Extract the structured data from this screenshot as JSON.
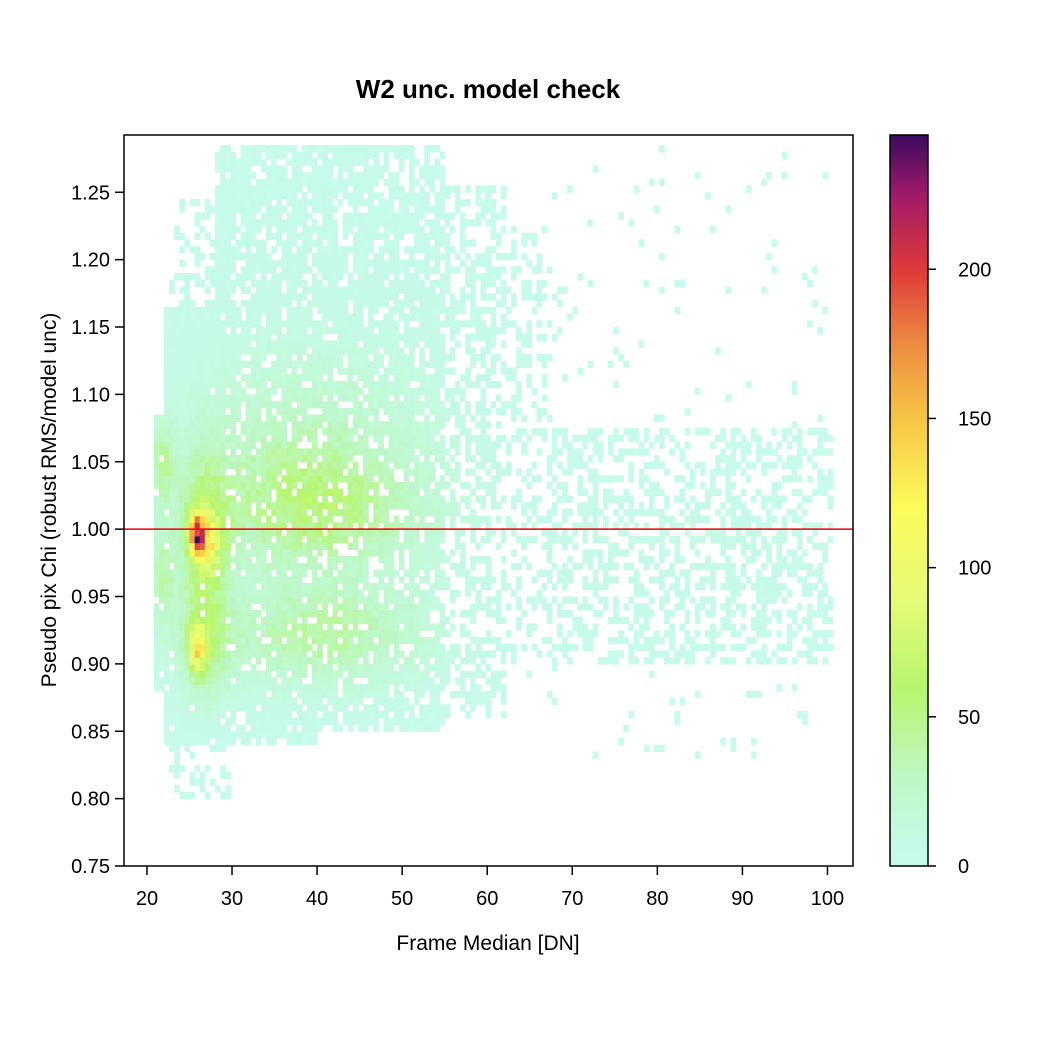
{
  "chart_data": {
    "type": "heatmap",
    "title": "W2 unc. model check",
    "xlabel": "Frame Median [DN]",
    "ylabel": "Pseudo pix Chi (robust RMS/model unc)",
    "xlim": [
      17.3,
      103.0
    ],
    "ylim": [
      0.75,
      1.2925
    ],
    "xticks": [
      20,
      30,
      40,
      50,
      60,
      70,
      80,
      90,
      100
    ],
    "xtick_labels": [
      "20",
      "30",
      "40",
      "50",
      "60",
      "70",
      "80",
      "90",
      "100"
    ],
    "yticks": [
      0.75,
      0.8,
      0.85,
      0.9,
      0.95,
      1.0,
      1.05,
      1.1,
      1.15,
      1.2,
      1.25
    ],
    "ytick_labels": [
      "0.75",
      "0.80",
      "0.85",
      "0.90",
      "0.95",
      "1.00",
      "1.05",
      "1.10",
      "1.15",
      "1.20",
      "1.25"
    ],
    "colorbar": {
      "range": [
        0,
        245
      ],
      "ticks": [
        0,
        50,
        100,
        150,
        200
      ],
      "tick_labels": [
        "0",
        "50",
        "100",
        "150",
        "200"
      ],
      "colormap": [
        {
          "value": 0,
          "color": "#c8fbf0"
        },
        {
          "value": 30,
          "color": "#bdf7c4"
        },
        {
          "value": 60,
          "color": "#b6f66c"
        },
        {
          "value": 90,
          "color": "#e6fa78"
        },
        {
          "value": 120,
          "color": "#fbfb5a"
        },
        {
          "value": 150,
          "color": "#f6c544"
        },
        {
          "value": 175,
          "color": "#ec8a40"
        },
        {
          "value": 200,
          "color": "#de3a3a"
        },
        {
          "value": 225,
          "color": "#a01a6a"
        },
        {
          "value": 245,
          "color": "#3b0b5e"
        }
      ]
    },
    "reference_line": {
      "y": 1.0,
      "color": "#e8000b"
    },
    "bin_width": {
      "x": 0.6,
      "y": 0.005
    },
    "density_components": [
      {
        "x": 25.6,
        "y": 0.995,
        "sx": 0.6,
        "sy": 0.01,
        "amp": 150
      },
      {
        "x": 26.7,
        "y": 0.985,
        "sx": 1.0,
        "sy": 0.015,
        "amp": 60
      },
      {
        "x": 25.6,
        "y": 0.91,
        "sx": 0.6,
        "sy": 0.012,
        "amp": 90
      },
      {
        "x": 26.5,
        "y": 0.99,
        "sx": 2.0,
        "sy": 0.04,
        "amp": 55
      },
      {
        "x": 26.5,
        "y": 0.91,
        "sx": 2.0,
        "sy": 0.025,
        "amp": 40
      },
      {
        "x": 21.5,
        "y": 1.045,
        "sx": 1.0,
        "sy": 0.02,
        "amp": 35
      },
      {
        "x": 21.5,
        "y": 0.96,
        "sx": 1.0,
        "sy": 0.025,
        "amp": 30
      },
      {
        "x": 40.0,
        "y": 1.01,
        "sx": 8.0,
        "sy": 0.03,
        "amp": 40
      },
      {
        "x": 40.0,
        "y": 0.92,
        "sx": 8.0,
        "sy": 0.025,
        "amp": 35
      },
      {
        "x": 38.0,
        "y": 1.06,
        "sx": 9.0,
        "sy": 0.04,
        "amp": 20
      },
      {
        "x": 40.0,
        "y": 1.06,
        "sx": 14.0,
        "sy": 0.12,
        "amp": 5
      },
      {
        "x": 80.0,
        "y": 0.97,
        "sx": 14.0,
        "sy": 0.04,
        "amp": 3
      }
    ],
    "support": [
      {
        "x0": 20.5,
        "x1": 23.5,
        "y0": 0.88,
        "y1": 1.08,
        "density": 0.9
      },
      {
        "x0": 22.0,
        "x1": 29.0,
        "y0": 0.84,
        "y1": 1.16,
        "density": 0.97
      },
      {
        "x0": 22.5,
        "x1": 29.5,
        "y0": 0.8,
        "y1": 1.24,
        "density": 0.35
      },
      {
        "x0": 28.0,
        "x1": 40.0,
        "y0": 0.84,
        "y1": 1.28,
        "density": 0.85
      },
      {
        "x0": 40.0,
        "x1": 55.0,
        "y0": 0.85,
        "y1": 1.28,
        "density": 0.8
      },
      {
        "x0": 55.0,
        "x1": 62.0,
        "y0": 0.86,
        "y1": 1.25,
        "density": 0.5
      },
      {
        "x0": 62.0,
        "x1": 67.0,
        "y0": 0.89,
        "y1": 1.22,
        "density": 0.3
      },
      {
        "x0": 67.0,
        "x1": 100.0,
        "y0": 0.9,
        "y1": 1.07,
        "density": 0.45
      },
      {
        "x0": 67.0,
        "x1": 100.0,
        "y0": 0.83,
        "y1": 1.28,
        "density": 0.03
      }
    ]
  }
}
